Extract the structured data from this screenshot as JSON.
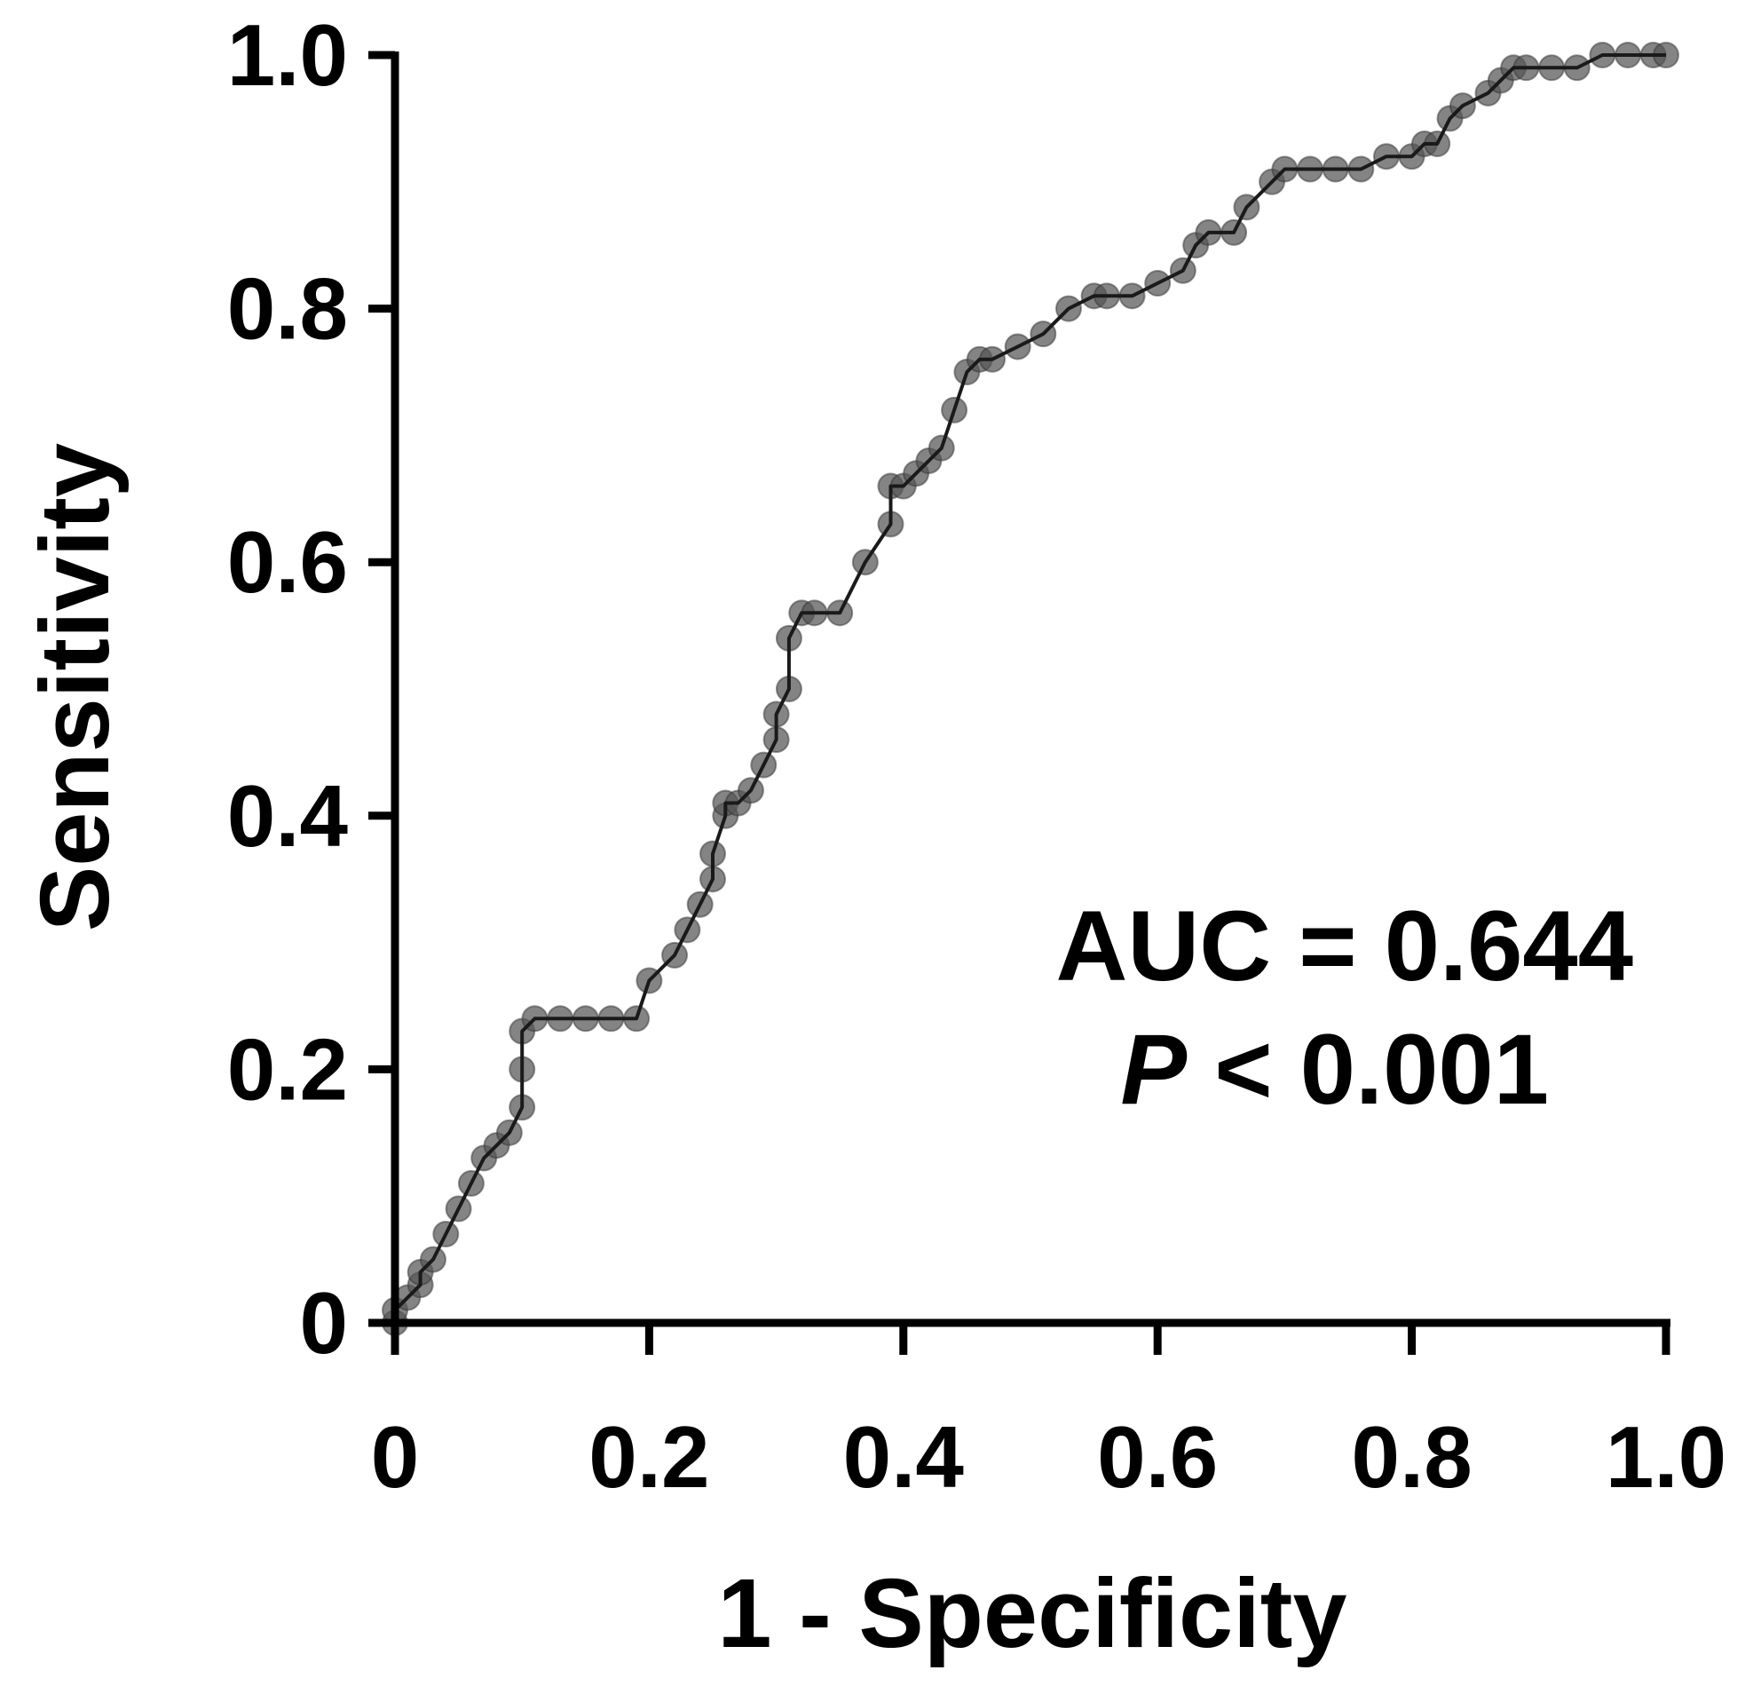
{
  "chart_data": {
    "type": "line",
    "title": "",
    "xlabel": "1 - Specificity",
    "ylabel": "Sensitivity",
    "xlim": [
      0,
      1
    ],
    "ylim": [
      0,
      1
    ],
    "xticks": [
      "0",
      "0.2",
      "0.4",
      "0.6",
      "0.8",
      "1.0"
    ],
    "yticks": [
      "0",
      "0.2",
      "0.4",
      "0.6",
      "0.8",
      "1.0"
    ],
    "grid": false,
    "legend": "none",
    "annotation": {
      "auc_text": "AUC = 0.644",
      "p_label": "P",
      "p_rest": " < 0.001"
    },
    "colors": {
      "line": "#1a1a1a",
      "marker": "#555555",
      "axes": "#000000"
    },
    "series": [
      {
        "markers": true,
        "x": [
          0.0,
          0.0,
          0.01,
          0.02,
          0.02,
          0.03,
          0.04,
          0.05,
          0.06,
          0.07,
          0.08,
          0.09,
          0.1,
          0.1,
          0.1,
          0.11,
          0.13,
          0.15,
          0.17,
          0.19,
          0.2,
          0.22,
          0.23,
          0.24,
          0.25,
          0.25,
          0.26,
          0.26,
          0.27,
          0.28,
          0.29,
          0.3,
          0.3,
          0.31,
          0.31,
          0.32,
          0.33,
          0.35,
          0.37,
          0.39,
          0.39,
          0.4,
          0.41,
          0.42,
          0.43,
          0.44,
          0.45,
          0.46,
          0.47,
          0.49,
          0.51,
          0.53,
          0.55,
          0.56,
          0.58,
          0.6,
          0.62,
          0.63,
          0.64,
          0.66,
          0.67,
          0.69,
          0.7,
          0.72,
          0.74,
          0.76,
          0.78,
          0.8,
          0.81,
          0.82,
          0.83,
          0.84,
          0.86,
          0.87,
          0.88,
          0.89,
          0.91,
          0.93,
          0.95,
          0.97,
          0.99,
          1.0
        ],
        "y": [
          0.0,
          0.01,
          0.02,
          0.03,
          0.04,
          0.05,
          0.07,
          0.09,
          0.11,
          0.13,
          0.14,
          0.15,
          0.17,
          0.2,
          0.23,
          0.24,
          0.24,
          0.24,
          0.24,
          0.24,
          0.27,
          0.29,
          0.31,
          0.33,
          0.35,
          0.37,
          0.4,
          0.41,
          0.41,
          0.42,
          0.44,
          0.46,
          0.48,
          0.5,
          0.54,
          0.56,
          0.56,
          0.56,
          0.6,
          0.63,
          0.66,
          0.66,
          0.67,
          0.68,
          0.69,
          0.72,
          0.75,
          0.76,
          0.76,
          0.77,
          0.78,
          0.8,
          0.81,
          0.81,
          0.81,
          0.82,
          0.83,
          0.85,
          0.86,
          0.86,
          0.88,
          0.9,
          0.91,
          0.91,
          0.91,
          0.91,
          0.92,
          0.92,
          0.93,
          0.93,
          0.95,
          0.96,
          0.97,
          0.98,
          0.99,
          0.99,
          0.99,
          0.99,
          1.0,
          1.0,
          1.0,
          1.0
        ]
      }
    ]
  }
}
